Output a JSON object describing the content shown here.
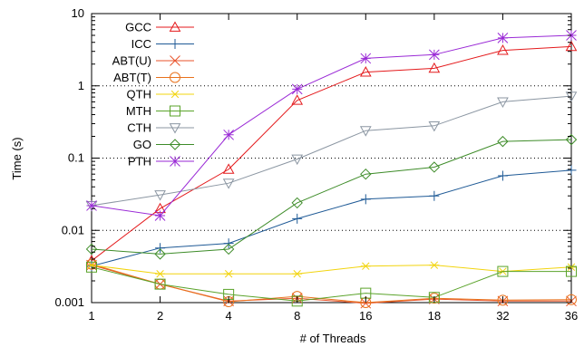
{
  "chart_data": {
    "type": "line",
    "title": "",
    "xlabel": "# of Threads",
    "ylabel": "Time (s)",
    "y_scale": "log",
    "ylim": [
      0.001,
      10
    ],
    "x_categories": [
      "1",
      "2",
      "4",
      "8",
      "16",
      "18",
      "32",
      "36"
    ],
    "y_tick_labels": [
      "0.001",
      "0.01",
      "0.1",
      "1",
      "10"
    ],
    "grid": "horizontal dotted",
    "legend_position": "top-left",
    "series": [
      {
        "name": "GCC",
        "color": "#e41a1c",
        "marker": "triangle-up",
        "values": [
          0.0038,
          0.02,
          0.07,
          0.63,
          1.55,
          1.75,
          3.1,
          3.5
        ]
      },
      {
        "name": "ICC",
        "color": "#1f5a96",
        "marker": "plus",
        "values": [
          0.0032,
          0.0057,
          0.0066,
          0.0145,
          0.027,
          0.03,
          0.057,
          0.068
        ]
      },
      {
        "name": "ABT(U)",
        "color": "#e8532b",
        "marker": "x",
        "values": [
          0.0033,
          0.0018,
          0.00105,
          0.00115,
          0.00098,
          0.00112,
          0.00105,
          0.00105
        ]
      },
      {
        "name": "ABT(T)",
        "color": "#e8721c",
        "marker": "circle",
        "values": [
          0.0034,
          0.0018,
          0.00103,
          0.00122,
          0.001,
          0.00115,
          0.00108,
          0.0011
        ]
      },
      {
        "name": "QTH",
        "color": "#f2d40e",
        "marker": "asterisk",
        "values": [
          0.0033,
          0.0025,
          0.0025,
          0.0025,
          0.0032,
          0.0033,
          0.0027,
          0.0031
        ]
      },
      {
        "name": "MTH",
        "color": "#5aa32a",
        "marker": "square",
        "values": [
          0.0031,
          0.0018,
          0.0013,
          0.00105,
          0.00135,
          0.00118,
          0.0027,
          0.0027
        ]
      },
      {
        "name": "CTH",
        "color": "#8b96a2",
        "marker": "triangle-down",
        "values": [
          0.022,
          0.031,
          0.045,
          0.097,
          0.24,
          0.28,
          0.6,
          0.72
        ]
      },
      {
        "name": "GO",
        "color": "#3e8c29",
        "marker": "diamond",
        "values": [
          0.0055,
          0.0047,
          0.0055,
          0.024,
          0.06,
          0.075,
          0.17,
          0.18
        ]
      },
      {
        "name": "PTH",
        "color": "#9a2ad6",
        "marker": "star",
        "values": [
          0.022,
          0.016,
          0.21,
          0.9,
          2.4,
          2.7,
          4.6,
          5.0
        ]
      }
    ]
  }
}
